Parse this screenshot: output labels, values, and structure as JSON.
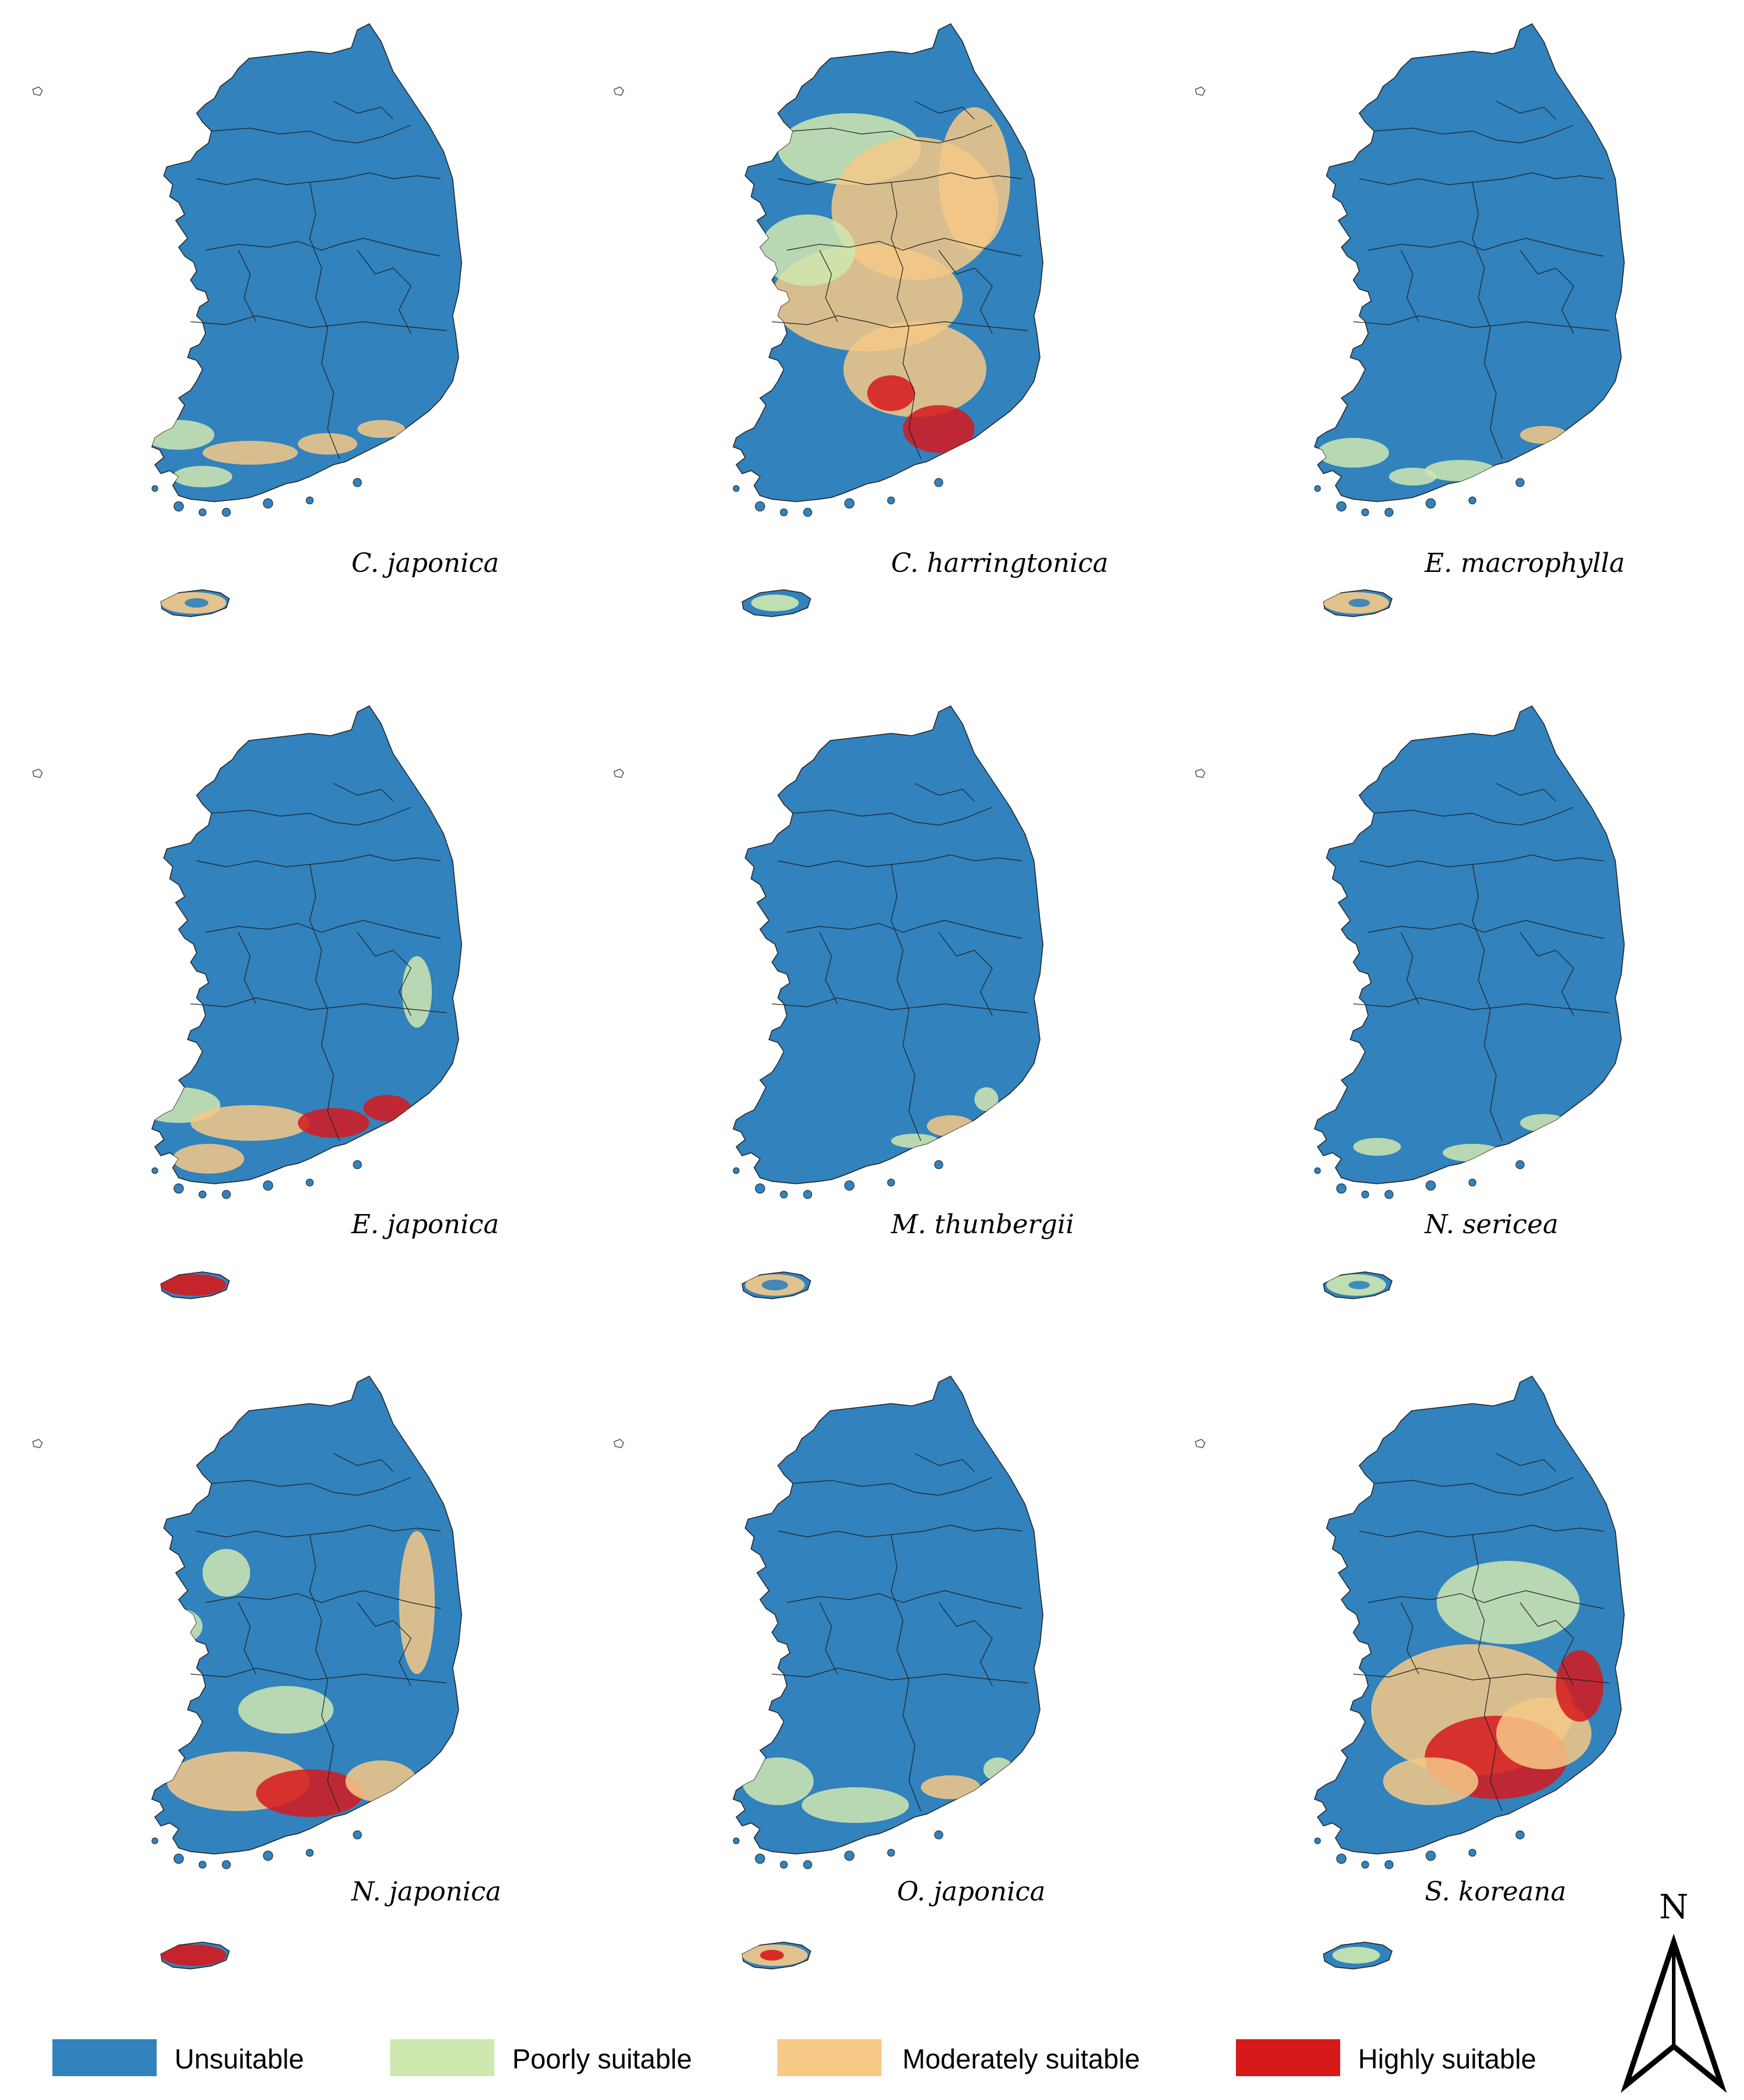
{
  "panels": [
    {
      "species": "C. japonica"
    },
    {
      "species": "C. harringtonica"
    },
    {
      "species": "E. macrophylla"
    },
    {
      "species": "E. japonica"
    },
    {
      "species": "M. thunbergii"
    },
    {
      "species": "N. sericea"
    },
    {
      "species": "N. japonica"
    },
    {
      "species": "O. japonica"
    },
    {
      "species": "S. koreana"
    }
  ],
  "legend": [
    {
      "label": "Unsuitable",
      "color": "#3182bd"
    },
    {
      "label": "Poorly suitable",
      "color": "#cfe8b0"
    },
    {
      "label": "Moderately suitable",
      "color": "#f6c987"
    },
    {
      "label": "Highly suitable",
      "color": "#d7191c"
    }
  ],
  "north_arrow": {
    "label": "N"
  },
  "colors": {
    "unsuitable": "#3182bd",
    "poorly": "#cfe8b0",
    "moderately": "#f6c987",
    "highly": "#d7191c",
    "border": "#222222"
  }
}
